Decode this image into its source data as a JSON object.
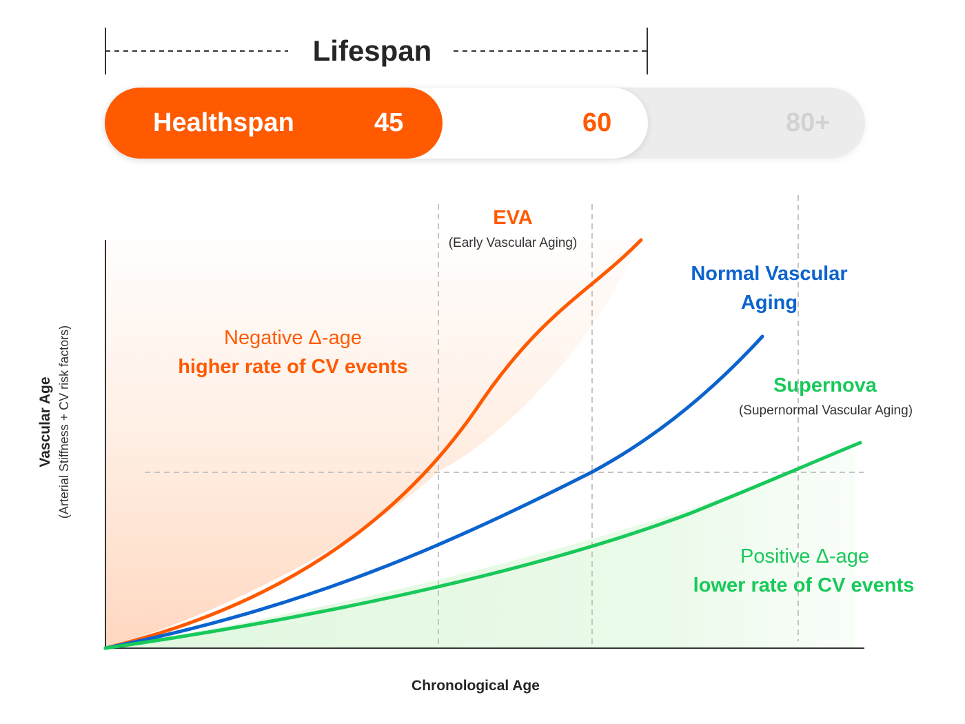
{
  "lifespan": {
    "label": "Lifespan"
  },
  "healthspan_bar": {
    "label": "Healthspan",
    "ages": [
      "45",
      "60",
      "80+"
    ]
  },
  "axes": {
    "y_title": "Vascular Age",
    "y_subtitle": "(Arterial Stiffness + CV risk factors)",
    "x_title": "Chronological Age"
  },
  "curves": [
    {
      "title": "EVA",
      "subtitle": "(Early Vascular Aging)",
      "color": "#ff5a00"
    },
    {
      "title": "Normal Vascular Aging",
      "subtitle": "",
      "color": "#0b63ce"
    },
    {
      "title": "Supernova",
      "subtitle": "(Supernormal Vascular Aging)",
      "color": "#18c95a"
    }
  ],
  "regions": {
    "negative": {
      "line1": "Negative  Δ-age",
      "line2": "higher rate of CV events",
      "color": "#ff5a00"
    },
    "positive": {
      "line1": "Positive  Δ-age",
      "line2": "lower rate of CV events",
      "color": "#18c95a"
    }
  }
}
